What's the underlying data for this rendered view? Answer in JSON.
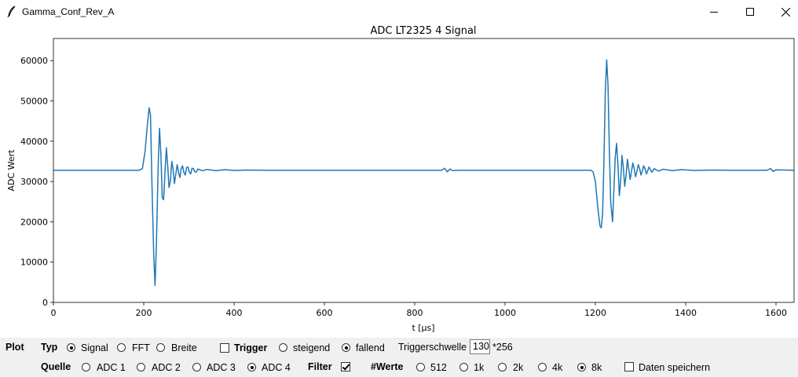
{
  "window": {
    "title": "Gamma_Conf_Rev_A",
    "icon": "feather-icon"
  },
  "chart_data": {
    "type": "line",
    "title": "ADC LT2325 4 Signal",
    "xlabel": "t [μs]",
    "ylabel": "ADC Wert",
    "xlim": [
      0,
      1640
    ],
    "ylim": [
      0,
      65500
    ],
    "xticks": [
      "0",
      "200",
      "400",
      "600",
      "800",
      "1000",
      "1200",
      "1400",
      "1600"
    ],
    "yticks": [
      "0",
      "10000",
      "20000",
      "30000",
      "40000",
      "50000",
      "60000"
    ],
    "grid": false,
    "series": [
      {
        "color": "#1f77b4",
        "points": [
          [
            0,
            32800
          ],
          [
            190,
            32800
          ],
          [
            197,
            33200
          ],
          [
            203,
            37500
          ],
          [
            208,
            44000
          ],
          [
            212,
            48300
          ],
          [
            215,
            46500
          ],
          [
            218,
            30000
          ],
          [
            222,
            12000
          ],
          [
            225,
            4200
          ],
          [
            228,
            14000
          ],
          [
            232,
            34000
          ],
          [
            235,
            43200
          ],
          [
            238,
            37000
          ],
          [
            241,
            26000
          ],
          [
            244,
            25500
          ],
          [
            247,
            32000
          ],
          [
            250,
            38400
          ],
          [
            253,
            34000
          ],
          [
            256,
            28500
          ],
          [
            259,
            30000
          ],
          [
            262,
            35000
          ],
          [
            265,
            33000
          ],
          [
            268,
            29500
          ],
          [
            271,
            31800
          ],
          [
            274,
            34200
          ],
          [
            277,
            32300
          ],
          [
            280,
            31000
          ],
          [
            283,
            33200
          ],
          [
            286,
            33900
          ],
          [
            289,
            32200
          ],
          [
            292,
            31600
          ],
          [
            295,
            33500
          ],
          [
            298,
            33600
          ],
          [
            301,
            32300
          ],
          [
            304,
            31900
          ],
          [
            307,
            33300
          ],
          [
            310,
            33200
          ],
          [
            313,
            32400
          ],
          [
            316,
            32300
          ],
          [
            320,
            33100
          ],
          [
            330,
            32700
          ],
          [
            340,
            33000
          ],
          [
            360,
            32700
          ],
          [
            380,
            32950
          ],
          [
            400,
            32750
          ],
          [
            430,
            32850
          ],
          [
            470,
            32800
          ],
          [
            520,
            32800
          ],
          [
            860,
            32800
          ],
          [
            866,
            33300
          ],
          [
            872,
            32400
          ],
          [
            878,
            33100
          ],
          [
            884,
            32700
          ],
          [
            900,
            32800
          ],
          [
            1190,
            32800
          ],
          [
            1195,
            32400
          ],
          [
            1200,
            30000
          ],
          [
            1205,
            24000
          ],
          [
            1210,
            19000
          ],
          [
            1213,
            18500
          ],
          [
            1216,
            22000
          ],
          [
            1219,
            35000
          ],
          [
            1222,
            52000
          ],
          [
            1225,
            60200
          ],
          [
            1228,
            54000
          ],
          [
            1231,
            38000
          ],
          [
            1234,
            25000
          ],
          [
            1238,
            20000
          ],
          [
            1241,
            28000
          ],
          [
            1244,
            36000
          ],
          [
            1247,
            39500
          ],
          [
            1250,
            34000
          ],
          [
            1253,
            26500
          ],
          [
            1256,
            30000
          ],
          [
            1259,
            36500
          ],
          [
            1262,
            33500
          ],
          [
            1265,
            28800
          ],
          [
            1268,
            31500
          ],
          [
            1271,
            35500
          ],
          [
            1274,
            33000
          ],
          [
            1277,
            30500
          ],
          [
            1280,
            32500
          ],
          [
            1283,
            34600
          ],
          [
            1286,
            33100
          ],
          [
            1289,
            31200
          ],
          [
            1292,
            32500
          ],
          [
            1295,
            34200
          ],
          [
            1298,
            33200
          ],
          [
            1301,
            31600
          ],
          [
            1304,
            32600
          ],
          [
            1307,
            33900
          ],
          [
            1310,
            33100
          ],
          [
            1313,
            31900
          ],
          [
            1316,
            32700
          ],
          [
            1319,
            33600
          ],
          [
            1322,
            32900
          ],
          [
            1325,
            32300
          ],
          [
            1330,
            33200
          ],
          [
            1340,
            32600
          ],
          [
            1350,
            33050
          ],
          [
            1370,
            32700
          ],
          [
            1390,
            32950
          ],
          [
            1420,
            32750
          ],
          [
            1460,
            32850
          ],
          [
            1500,
            32800
          ],
          [
            1580,
            32800
          ],
          [
            1588,
            33200
          ],
          [
            1594,
            32500
          ],
          [
            1600,
            32900
          ],
          [
            1640,
            32800
          ]
        ]
      }
    ]
  },
  "controls": {
    "plot_label": "Plot",
    "typ_label": "Typ",
    "typ_options": [
      "Signal",
      "FFT",
      "Breite"
    ],
    "typ_selected": "Signal",
    "trigger_label": "Trigger",
    "trigger_checked": false,
    "trigger_options": [
      "steigend",
      "fallend"
    ],
    "trigger_selected": "fallend",
    "threshold_label": "Triggerschwelle",
    "threshold_value": "130",
    "threshold_unit": "*256",
    "quelle_label": "Quelle",
    "quelle_options": [
      "ADC 1",
      "ADC 2",
      "ADC 3",
      "ADC 4"
    ],
    "quelle_selected": "ADC 4",
    "filter_label": "Filter",
    "filter_checked": true,
    "werte_label": "#Werte",
    "werte_options": [
      "512",
      "1k",
      "2k",
      "4k",
      "8k"
    ],
    "werte_selected": "8k",
    "save_label": "Daten speichern",
    "save_checked": false
  }
}
